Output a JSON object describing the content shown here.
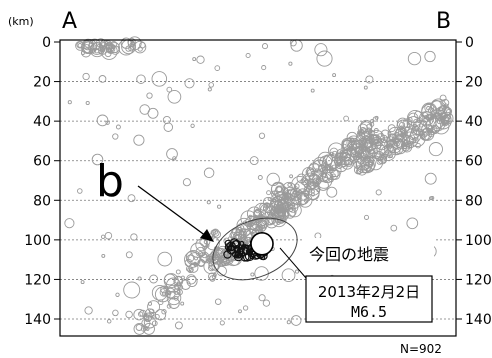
{
  "chart_data": {
    "type": "scatter",
    "unit_label": "(km)",
    "end_labels": {
      "left": "A",
      "right": "B"
    },
    "annotation_letter": "b",
    "callout": {
      "title": "今回の地震",
      "date": "2013年2月2日",
      "magnitude": "M6.5"
    },
    "count_label": "N=902",
    "ylim": [
      0,
      145
    ],
    "yticks": [
      0,
      20,
      40,
      60,
      80,
      100,
      120,
      140
    ],
    "ytick_labels": [
      "0",
      "20",
      "40",
      "60",
      "80",
      "100",
      "120",
      "140"
    ],
    "xlim": [
      0,
      100
    ],
    "grid": true,
    "colors": {
      "background_event": "#9a9a9a",
      "aftershock": "#111111",
      "main_shock_fill": "#ffffff"
    },
    "main_shock": {
      "x": 51,
      "depth": 102
    },
    "clusters": [
      {
        "name": "shallow-A",
        "x": [
          5,
          14
        ],
        "depth": [
          0,
          6
        ],
        "n": 45,
        "shade": "gray"
      },
      {
        "name": "shallow-mid",
        "x": [
          16,
          22
        ],
        "depth": [
          0,
          5
        ],
        "n": 12,
        "shade": "gray"
      },
      {
        "name": "deep-slab-lower",
        "x": [
          20,
          40
        ],
        "depth": [
          100,
          145
        ],
        "n": 90,
        "shade": "gray"
      },
      {
        "name": "slab-middle",
        "x": [
          38,
          58
        ],
        "depth": [
          75,
          115
        ],
        "n": 160,
        "shade": "gray"
      },
      {
        "name": "slab-upper",
        "x": [
          55,
          80
        ],
        "depth": [
          45,
          85
        ],
        "n": 230,
        "shade": "gray"
      },
      {
        "name": "slab-shallow-east",
        "x": [
          75,
          98
        ],
        "depth": [
          35,
          60
        ],
        "n": 190,
        "shade": "gray"
      },
      {
        "name": "scatter-wide",
        "x": [
          2,
          99
        ],
        "depth": [
          0,
          145
        ],
        "n": 120,
        "shade": "gray"
      },
      {
        "name": "aftershocks",
        "x": [
          42,
          52
        ],
        "depth": [
          101,
          109
        ],
        "n": 55,
        "shade": "black"
      }
    ]
  }
}
